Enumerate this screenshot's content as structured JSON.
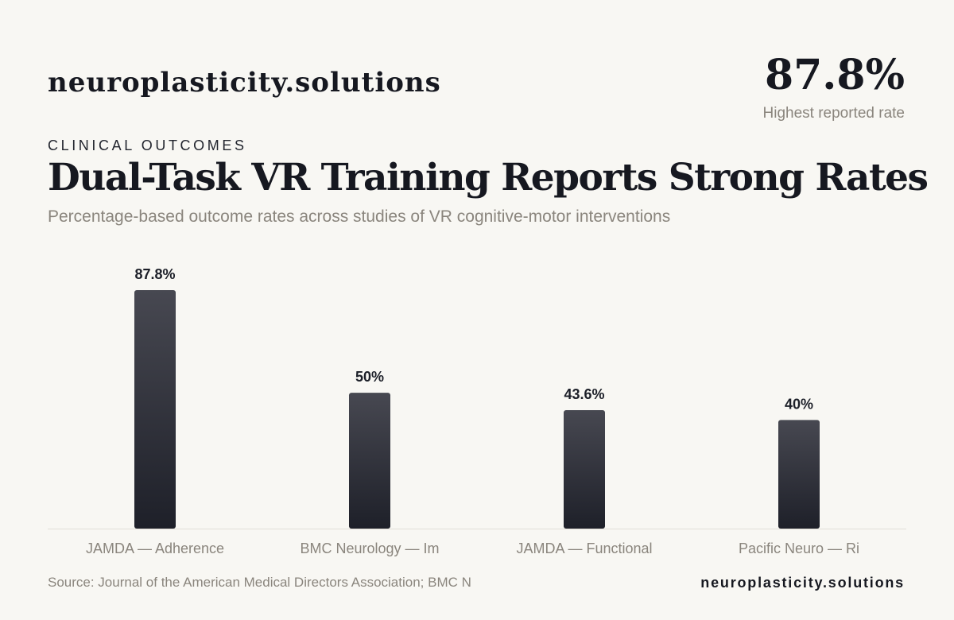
{
  "header": {
    "brand": "neuroplasticity.solutions",
    "highlight_value": "87.8%",
    "highlight_label": "Highest reported rate"
  },
  "eyebrow": "CLINICAL OUTCOMES",
  "title": "Dual-Task VR Training Reports Strong Rates",
  "subtitle": "Percentage-based outcome rates across studies of VR cognitive-motor interventions",
  "footer": {
    "source": "Source: Journal of the American Medical Directors Association; BMC N",
    "brand": "neuroplasticity.solutions"
  },
  "colors": {
    "background": "#f8f7f3",
    "bar_top": "#474851",
    "bar_bottom": "#1e2029",
    "baseline": "#e2dfd8",
    "muted_text": "#8a857d"
  },
  "chart_data": {
    "type": "bar",
    "categories": [
      "JAMDA — Adherence",
      "BMC Neurology — Im",
      "JAMDA — Functional",
      "Pacific Neuro — Ri"
    ],
    "values": [
      87.8,
      50,
      43.6,
      40
    ],
    "value_labels": [
      "87.8%",
      "50%",
      "43.6%",
      "40%"
    ],
    "unit": "%",
    "ylim": [
      0,
      87.8
    ],
    "grid": false,
    "legend": "none"
  }
}
